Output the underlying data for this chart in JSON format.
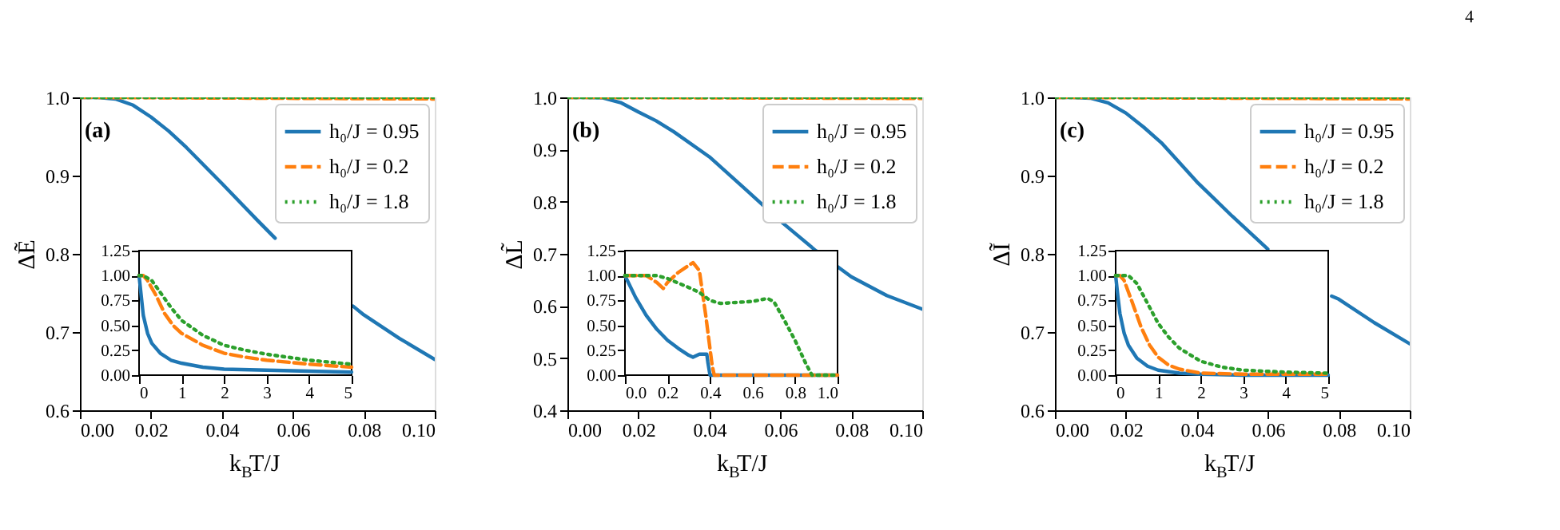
{
  "chart_data": [
    {
      "type": "line",
      "xlabel": "k$_{B}$T/J",
      "ylabel": "ΔẼ",
      "annotations": [
        "(a)"
      ],
      "legend": "top right",
      "xlim": [
        0,
        0.1
      ],
      "ylim": [
        0.6,
        1.0
      ],
      "xticks": [
        {
          "value": 0,
          "label": "0.00"
        },
        {
          "value": 0.02,
          "label": "0.02"
        },
        {
          "value": 0.04,
          "label": "0.04"
        },
        {
          "value": 0.06,
          "label": "0.06"
        },
        {
          "value": 0.08,
          "label": "0.08"
        },
        {
          "value": 0.1,
          "label": "0.10"
        }
      ],
      "yticks": [
        {
          "value": 0.6,
          "label": "0.6"
        },
        {
          "value": 0.7,
          "label": "0.7"
        },
        {
          "value": 0.8,
          "label": "0.8"
        },
        {
          "value": 0.9,
          "label": "0.9"
        },
        {
          "value": 1.0,
          "label": "1.0"
        }
      ],
      "series": [
        {
          "name": "h₀/J = 0.95",
          "color": "#1f77b4",
          "line_style": "solid",
          "x": [
            0,
            0.005,
            0.01,
            0.015,
            0.02,
            0.025,
            0.03,
            0.04,
            0.05,
            0.055,
            0.06,
            0.07,
            0.077,
            0.08,
            0.09,
            0.1
          ],
          "values": [
            1,
            1,
            0.998,
            0.99,
            0.975,
            0.957,
            0.936,
            0.89,
            0.843,
            0.82,
            null,
            null,
            0.733,
            0.722,
            0.692,
            0.665
          ]
        },
        {
          "name": "h₀/J = 0.2",
          "color": "#ff7f0e",
          "line_style": "dashed",
          "x": [
            0,
            0.1
          ],
          "values": [
            1.0,
            0.998
          ]
        },
        {
          "name": "h₀/J = 1.8",
          "color": "#2ca02c",
          "line_style": "dotted",
          "x": [
            0,
            0.1
          ],
          "values": [
            1.0,
            1.0
          ]
        }
      ]
    },
    {
      "type": "line",
      "xlim": [
        0,
        5
      ],
      "ylim": [
        0,
        1.25
      ],
      "xticks": [
        0,
        1,
        2,
        3,
        4,
        5
      ],
      "yticks": [
        {
          "value": 0,
          "label": "0.00"
        },
        {
          "value": 0.25,
          "label": "0.25"
        },
        {
          "value": 0.5,
          "label": "0.50"
        },
        {
          "value": 0.75,
          "label": "0.75"
        },
        {
          "value": 1,
          "label": "1.00"
        },
        {
          "value": 1.25,
          "label": "1.25"
        }
      ],
      "series": [
        {
          "color": "#1f77b4",
          "line_style": "solid",
          "x": [
            0,
            0.05,
            0.1,
            0.2,
            0.3,
            0.5,
            0.75,
            1,
            1.5,
            2,
            3,
            4,
            5
          ],
          "values": [
            1,
            0.8,
            0.6,
            0.42,
            0.32,
            0.22,
            0.15,
            0.12,
            0.08,
            0.06,
            0.05,
            0.04,
            0.03
          ]
        },
        {
          "color": "#ff7f0e",
          "line_style": "dashed",
          "x": [
            0,
            0.1,
            0.2,
            0.4,
            0.6,
            0.8,
            1,
            1.5,
            2,
            2.5,
            3,
            4,
            5
          ],
          "values": [
            1,
            1,
            0.95,
            0.8,
            0.62,
            0.5,
            0.42,
            0.3,
            0.22,
            0.18,
            0.15,
            0.11,
            0.08
          ]
        },
        {
          "color": "#2ca02c",
          "line_style": "dotted",
          "x": [
            0,
            0.1,
            0.3,
            0.5,
            0.75,
            1,
            1.5,
            2,
            2.5,
            3,
            4,
            5
          ],
          "values": [
            1,
            1,
            0.95,
            0.83,
            0.68,
            0.55,
            0.4,
            0.3,
            0.25,
            0.21,
            0.15,
            0.11
          ]
        }
      ]
    },
    {
      "type": "line",
      "xlabel": "k$_{B}$T/J",
      "ylabel": "ΔL̃",
      "annotations": [
        "(b)"
      ],
      "legend": "top right",
      "xlim": [
        0,
        0.1
      ],
      "ylim": [
        0.4,
        1.0
      ],
      "xticks": [
        {
          "value": 0,
          "label": "0.00"
        },
        {
          "value": 0.02,
          "label": "0.02"
        },
        {
          "value": 0.04,
          "label": "0.04"
        },
        {
          "value": 0.06,
          "label": "0.06"
        },
        {
          "value": 0.08,
          "label": "0.08"
        },
        {
          "value": 0.1,
          "label": "0.10"
        }
      ],
      "yticks": [
        {
          "value": 0.4,
          "label": "0.4"
        },
        {
          "value": 0.5,
          "label": "0.5"
        },
        {
          "value": 0.6,
          "label": "0.6"
        },
        {
          "value": 0.7,
          "label": "0.7"
        },
        {
          "value": 0.8,
          "label": "0.8"
        },
        {
          "value": 0.9,
          "label": "0.9"
        },
        {
          "value": 1.0,
          "label": "1.0"
        }
      ],
      "series": [
        {
          "name": "h₀/J = 0.95",
          "color": "#1f77b4",
          "line_style": "solid",
          "x": [
            0,
            0.005,
            0.01,
            0.015,
            0.02,
            0.025,
            0.03,
            0.04,
            0.05,
            0.06,
            0.07,
            0.08,
            0.09,
            0.1
          ],
          "values": [
            1,
            1,
            0.999,
            0.99,
            0.972,
            0.955,
            0.934,
            0.886,
            0.825,
            0.763,
            0.706,
            0.656,
            0.62,
            0.594
          ]
        },
        {
          "name": "h₀/J = 0.2",
          "color": "#ff7f0e",
          "line_style": "dashed",
          "x": [
            0,
            0.1
          ],
          "values": [
            1.0,
            0.998
          ]
        },
        {
          "name": "h₀/J = 1.8",
          "color": "#2ca02c",
          "line_style": "dotted",
          "x": [
            0,
            0.1
          ],
          "values": [
            1.0,
            1.0
          ]
        }
      ]
    },
    {
      "type": "line",
      "xlim": [
        0,
        1
      ],
      "ylim": [
        0,
        1.25
      ],
      "xticks": [
        {
          "value": 0,
          "label": "0.0"
        },
        {
          "value": 0.2,
          "label": "0.2"
        },
        {
          "value": 0.4,
          "label": "0.4"
        },
        {
          "value": 0.6,
          "label": "0.6"
        },
        {
          "value": 0.8,
          "label": "0.8"
        },
        {
          "value": 1,
          "label": "1.0"
        }
      ],
      "yticks": [
        {
          "value": 0,
          "label": "0.00"
        },
        {
          "value": 0.25,
          "label": "0.25"
        },
        {
          "value": 0.5,
          "label": "0.50"
        },
        {
          "value": 0.75,
          "label": "0.75"
        },
        {
          "value": 1,
          "label": "1.00"
        },
        {
          "value": 1.25,
          "label": "1.25"
        }
      ],
      "series": [
        {
          "color": "#1f77b4",
          "line_style": "solid",
          "x": [
            0,
            0.05,
            0.1,
            0.15,
            0.2,
            0.25,
            0.3,
            0.32,
            0.35,
            0.385,
            0.39,
            0.4,
            1
          ],
          "values": [
            1,
            0.78,
            0.6,
            0.46,
            0.35,
            0.27,
            0.2,
            0.18,
            0.21,
            0.21,
            0.13,
            0,
            0
          ]
        },
        {
          "color": "#ff7f0e",
          "line_style": "dashed",
          "x": [
            0,
            0.1,
            0.15,
            0.18,
            0.2,
            0.25,
            0.32,
            0.35,
            0.38,
            0.41,
            0.42,
            1
          ],
          "values": [
            1,
            1,
            0.93,
            0.87,
            0.93,
            1.03,
            1.13,
            1.05,
            0.6,
            0.1,
            0,
            0
          ]
        },
        {
          "color": "#2ca02c",
          "line_style": "dotted",
          "x": [
            0,
            0.15,
            0.2,
            0.3,
            0.35,
            0.4,
            0.45,
            0.6,
            0.67,
            0.7,
            0.75,
            0.8,
            0.85,
            0.88,
            1
          ],
          "values": [
            1,
            1,
            0.97,
            0.88,
            0.83,
            0.75,
            0.72,
            0.74,
            0.77,
            0.74,
            0.55,
            0.35,
            0.12,
            0,
            0
          ]
        }
      ]
    },
    {
      "type": "line",
      "xlabel": "k$_{B}$T/J",
      "ylabel": "ΔĨ",
      "annotations": [
        "(c)",
        "4"
      ],
      "legend": "top right",
      "xlim": [
        0,
        0.1
      ],
      "ylim": [
        0.6,
        1.0
      ],
      "xticks": [
        {
          "value": 0,
          "label": "0.00"
        },
        {
          "value": 0.02,
          "label": "0.02"
        },
        {
          "value": 0.04,
          "label": "0.04"
        },
        {
          "value": 0.06,
          "label": "0.06"
        },
        {
          "value": 0.08,
          "label": "0.08"
        },
        {
          "value": 0.1,
          "label": "0.10"
        }
      ],
      "yticks": [
        {
          "value": 0.6,
          "label": "0.6"
        },
        {
          "value": 0.7,
          "label": "0.7"
        },
        {
          "value": 0.8,
          "label": "0.8"
        },
        {
          "value": 0.9,
          "label": "0.9"
        },
        {
          "value": 1.0,
          "label": "1.0"
        }
      ],
      "series": [
        {
          "name": "h₀/J = 0.95",
          "color": "#1f77b4",
          "line_style": "solid",
          "x": [
            0,
            0.005,
            0.01,
            0.015,
            0.02,
            0.025,
            0.03,
            0.04,
            0.05,
            0.06,
            0.07,
            0.078,
            0.08,
            0.09,
            0.1
          ],
          "values": [
            1,
            1,
            0.999,
            0.993,
            0.98,
            0.962,
            0.942,
            0.892,
            0.848,
            0.806,
            null,
            0.746,
            0.742,
            0.712,
            0.685
          ]
        },
        {
          "name": "h₀/J = 0.2",
          "color": "#ff7f0e",
          "line_style": "dashed",
          "x": [
            0,
            0.1
          ],
          "values": [
            1.0,
            0.998
          ]
        },
        {
          "name": "h₀/J = 1.8",
          "color": "#2ca02c",
          "line_style": "dotted",
          "x": [
            0,
            0.1
          ],
          "values": [
            1.0,
            1.0
          ]
        }
      ]
    },
    {
      "type": "line",
      "xlim": [
        0,
        5
      ],
      "ylim": [
        0,
        1.25
      ],
      "xticks": [
        0,
        1,
        2,
        3,
        4,
        5
      ],
      "yticks": [
        {
          "value": 0,
          "label": "0.00"
        },
        {
          "value": 0.25,
          "label": "0.25"
        },
        {
          "value": 0.5,
          "label": "0.50"
        },
        {
          "value": 0.75,
          "label": "0.75"
        },
        {
          "value": 1,
          "label": "1.00"
        },
        {
          "value": 1.25,
          "label": "1.25"
        }
      ],
      "series": [
        {
          "color": "#1f77b4",
          "line_style": "solid",
          "x": [
            0,
            0.05,
            0.1,
            0.2,
            0.3,
            0.5,
            0.75,
            1,
            1.5,
            2,
            3,
            5
          ],
          "values": [
            1,
            0.8,
            0.62,
            0.42,
            0.3,
            0.17,
            0.09,
            0.05,
            0.02,
            0.01,
            0,
            0
          ]
        },
        {
          "color": "#ff7f0e",
          "line_style": "dashed",
          "x": [
            0,
            0.1,
            0.2,
            0.4,
            0.6,
            0.8,
            1,
            1.25,
            1.5,
            2,
            3,
            5
          ],
          "values": [
            1,
            1,
            0.95,
            0.72,
            0.48,
            0.3,
            0.18,
            0.1,
            0.06,
            0.02,
            0.01,
            0.01
          ]
        },
        {
          "color": "#2ca02c",
          "line_style": "dotted",
          "x": [
            0,
            0.3,
            0.5,
            0.75,
            1,
            1.25,
            1.5,
            2,
            2.5,
            3,
            4,
            5
          ],
          "values": [
            1,
            1,
            0.92,
            0.72,
            0.52,
            0.38,
            0.27,
            0.14,
            0.08,
            0.05,
            0.03,
            0.02
          ]
        }
      ]
    }
  ]
}
